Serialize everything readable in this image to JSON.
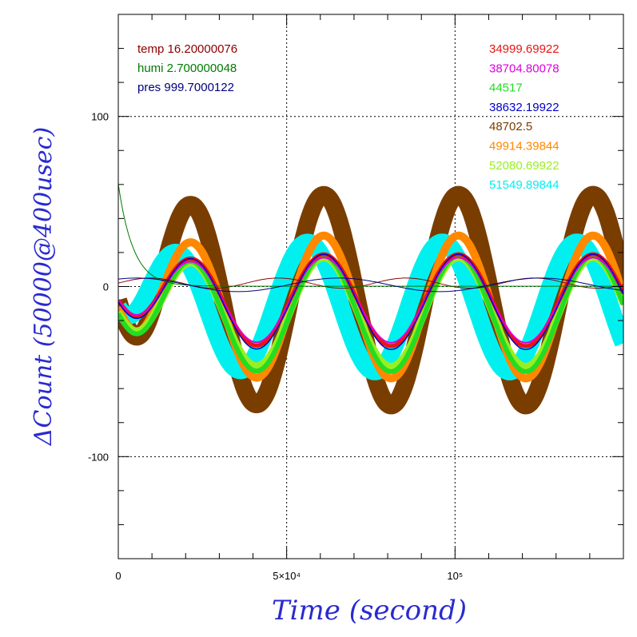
{
  "chart_data": {
    "type": "line",
    "xlabel": "Time (second)",
    "ylabel": "ΔCount (50000@400usec)",
    "xlim": [
      0,
      150000
    ],
    "ylim": [
      -160,
      160
    ],
    "grid": true,
    "x_ticks": [
      {
        "value": 0,
        "label": "0"
      },
      {
        "value": 50000,
        "label": "5×10⁴"
      },
      {
        "value": 100000,
        "label": "10⁵"
      }
    ],
    "y_ticks": [
      {
        "value": 100,
        "label": "100"
      },
      {
        "value": 0,
        "label": "0"
      },
      {
        "value": -100,
        "label": "-100"
      }
    ],
    "env_legend": [
      {
        "label": "temp 16.20000076",
        "color": "#8b0000"
      },
      {
        "label": "humi 2.700000048",
        "color": "#007a00"
      },
      {
        "label": "pres 999.7000122",
        "color": "#000080"
      }
    ],
    "series": [
      {
        "name": "34999.69922",
        "color": "#ee1111",
        "phase": 0.0,
        "amp": 27,
        "offset": -8,
        "width": 5
      },
      {
        "name": "38704.80078",
        "color": "#dd00dd",
        "phase": 0.0,
        "amp": 25,
        "offset": -8,
        "width": 2
      },
      {
        "name": "44517",
        "color": "#22dd22",
        "phase": 0.0,
        "amp": 34,
        "offset": -16,
        "width": 6
      },
      {
        "name": "38632.19922",
        "color": "#0000cc",
        "phase": 0.0,
        "amp": 28,
        "offset": -9,
        "width": 1.5
      },
      {
        "name": "48702.5",
        "color": "#7a3d00",
        "phase": 0.0,
        "amp": 62,
        "offset": -8,
        "width": 22
      },
      {
        "name": "49914.39844",
        "color": "#ff8800",
        "phase": 0.0,
        "amp": 42,
        "offset": -12,
        "width": 10
      },
      {
        "name": "52080.69922",
        "color": "#99ee22",
        "phase": 0.0,
        "amp": 32,
        "offset": -15,
        "width": 9
      },
      {
        "name": "51549.89844",
        "color": "#00f0f0",
        "phase": 0.12,
        "amp": 38,
        "offset": -12,
        "width": 22
      }
    ],
    "period": 40000
  }
}
